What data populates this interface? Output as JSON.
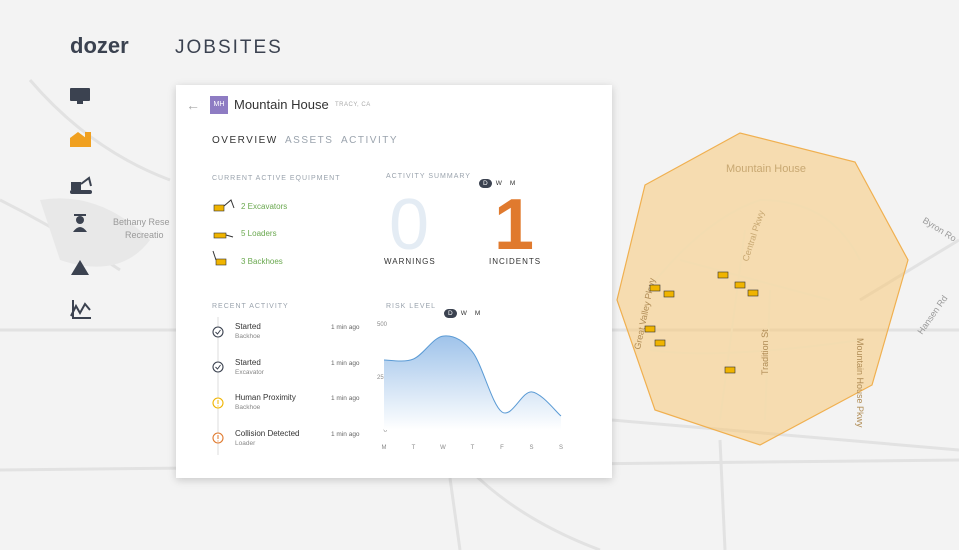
{
  "header": {
    "logo": "dozer",
    "title": "JOBSITES"
  },
  "map": {
    "labels": [
      "Bethany Rese",
      "Recreatio",
      "Mountain House",
      "Central Pkwy",
      "Great Valley Pkwy",
      "Tradition St",
      "Mountain House Pkwy",
      "Byron Ro",
      "Hansen Rd"
    ]
  },
  "card": {
    "badge": "MH",
    "name": "Mountain House",
    "location": "TRACY, CA",
    "tabs": [
      "OVERVIEW",
      "ASSETS",
      "ACTIVITY"
    ],
    "equipment": {
      "label": "CURRENT ACTIVE EQUIPMENT",
      "items": [
        "2 Excavators",
        "5 Loaders",
        "3 Backhoes"
      ]
    },
    "activity_summary": {
      "label": "ACTIVITY SUMMARY",
      "toggle": [
        "D",
        "W",
        "M"
      ],
      "warnings": {
        "count": 0,
        "label": "WARNINGS"
      },
      "incidents": {
        "count": 1,
        "label": "INCIDENTS"
      }
    },
    "recent_activity": {
      "label": "RECENT ACTIVITY",
      "items": [
        {
          "title": "Started",
          "subtitle": "Backhoe",
          "time": "1 min ago"
        },
        {
          "title": "Started",
          "subtitle": "Excavator",
          "time": "1 min ago"
        },
        {
          "title": "Human Proximity",
          "subtitle": "Backhoe",
          "time": "1 min ago"
        },
        {
          "title": "Collision Detected",
          "subtitle": "Loader",
          "time": "1 min ago"
        }
      ]
    },
    "risk_level": {
      "label": "RISK LEVEL",
      "toggle": [
        "D",
        "W",
        "M"
      ],
      "chart": {
        "type": "area",
        "categories": [
          "M",
          "T",
          "W",
          "T",
          "F",
          "S",
          "S"
        ],
        "values": [
          330,
          335,
          443,
          368,
          85,
          180,
          66
        ],
        "ylim": [
          0,
          500
        ],
        "yticks": [
          0,
          250,
          500
        ],
        "color": "#5b9bd5"
      }
    }
  }
}
